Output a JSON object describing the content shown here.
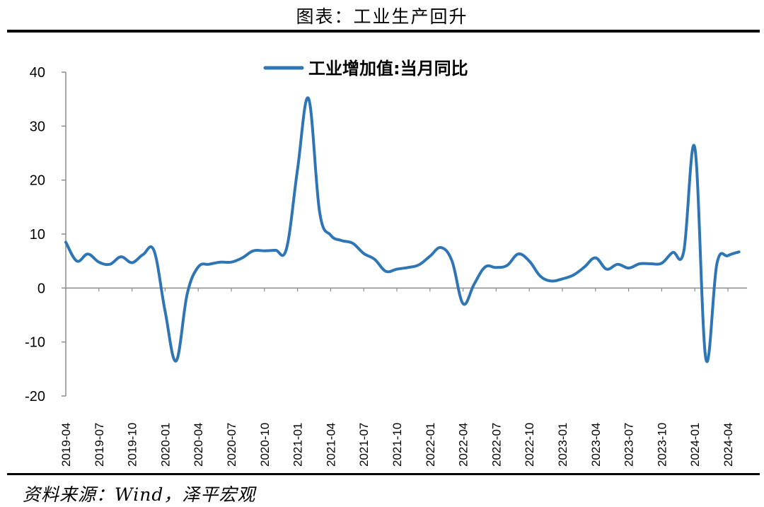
{
  "figure": {
    "title": "图表：工业生产回升",
    "source": "资料来源：Wind，泽平宏观"
  },
  "chart_data": {
    "type": "line",
    "title": "",
    "xlabel": "",
    "ylabel": "",
    "ylim": [
      -20,
      40
    ],
    "yticks": [
      -20,
      -10,
      0,
      10,
      20,
      30,
      40
    ],
    "grid": false,
    "legend_position": "top-center",
    "x_tick_labels": [
      "2019-04",
      "2019-07",
      "2019-10",
      "2020-01",
      "2020-04",
      "2020-07",
      "2020-10",
      "2021-01",
      "2021-04",
      "2021-07",
      "2021-10",
      "2022-01",
      "2022-04",
      "2022-07",
      "2022-10",
      "2023-01",
      "2023-04",
      "2023-07",
      "2023-10",
      "2024-01",
      "2024-04"
    ],
    "x": [
      "2019-04",
      "2019-05",
      "2019-06",
      "2019-07",
      "2019-08",
      "2019-09",
      "2019-10",
      "2019-11",
      "2019-12",
      "2020-01",
      "2020-02",
      "2020-03",
      "2020-04",
      "2020-05",
      "2020-06",
      "2020-07",
      "2020-08",
      "2020-09",
      "2020-10",
      "2020-11",
      "2020-12",
      "2021-01",
      "2021-02",
      "2021-03",
      "2021-04",
      "2021-05",
      "2021-06",
      "2021-07",
      "2021-08",
      "2021-09",
      "2021-10",
      "2021-11",
      "2021-12",
      "2022-01",
      "2022-02",
      "2022-03",
      "2022-04",
      "2022-05",
      "2022-06",
      "2022-07",
      "2022-08",
      "2022-09",
      "2022-10",
      "2022-11",
      "2022-12",
      "2023-01",
      "2023-02",
      "2023-03",
      "2023-04",
      "2023-05",
      "2023-06",
      "2023-07",
      "2023-08",
      "2023-09",
      "2023-10",
      "2023-11",
      "2023-12",
      "2024-01",
      "2024-02",
      "2024-03",
      "2024-04",
      "2024-05"
    ],
    "series": [
      {
        "name": "工业增加值:当月同比",
        "color": "#2e75b6",
        "values": [
          8.5,
          5.0,
          6.3,
          4.8,
          4.4,
          5.8,
          4.7,
          6.2,
          6.9,
          -4.3,
          -13.5,
          -1.1,
          3.9,
          4.4,
          4.8,
          4.8,
          5.6,
          6.9,
          6.9,
          7.0,
          7.3,
          22.0,
          35.1,
          14.1,
          9.8,
          8.8,
          8.3,
          6.4,
          5.3,
          3.1,
          3.5,
          3.8,
          4.3,
          5.9,
          7.5,
          5.0,
          -2.9,
          0.7,
          3.9,
          3.8,
          4.2,
          6.3,
          5.0,
          2.2,
          1.3,
          1.7,
          2.4,
          3.9,
          5.6,
          3.5,
          4.4,
          3.7,
          4.5,
          4.5,
          4.6,
          6.6,
          6.8,
          26.0,
          -13.1,
          4.5,
          6.0,
          6.7
        ]
      }
    ]
  }
}
